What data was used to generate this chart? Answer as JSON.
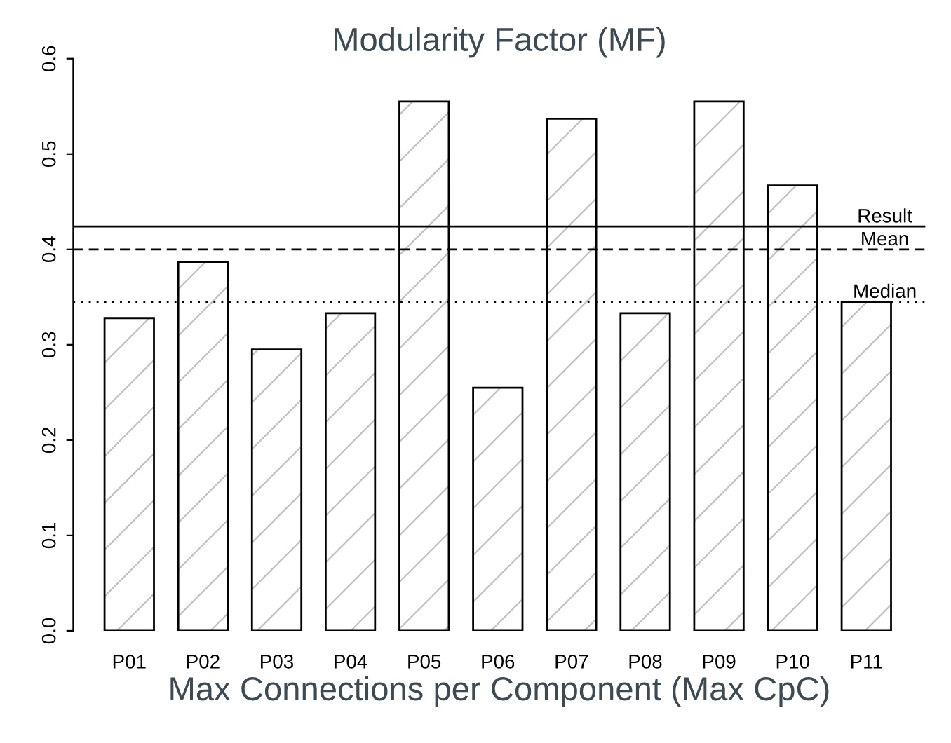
{
  "chart_data": {
    "type": "bar",
    "title": "Modularity Factor (MF)",
    "xlabel": "Max Connections per Component (Max CpC)",
    "categories": [
      "P01",
      "P02",
      "P03",
      "P04",
      "P05",
      "P06",
      "P07",
      "P08",
      "P09",
      "P10",
      "P11"
    ],
    "values": [
      0.328,
      0.387,
      0.295,
      0.333,
      0.555,
      0.255,
      0.537,
      0.333,
      0.555,
      0.467,
      0.345
    ],
    "color": "#000000",
    "ylim": [
      0,
      0.6
    ],
    "yticks": [
      {
        "value": 0,
        "label": "0.0"
      },
      0.1,
      0.2,
      0.3,
      0.4,
      0.5,
      0.6
    ],
    "grid": false,
    "legend": false,
    "ref_lines": [
      {
        "axis": "y",
        "value": 0.424,
        "label": "Result",
        "line_style": "solid",
        "color": "#000000"
      },
      {
        "axis": "y",
        "value": 0.4,
        "label": "Mean",
        "line_style": "dashed",
        "color": "#000000"
      },
      {
        "axis": "y",
        "value": 0.345,
        "label": "Median",
        "line_style": "dotted",
        "color": "#000000"
      }
    ]
  }
}
